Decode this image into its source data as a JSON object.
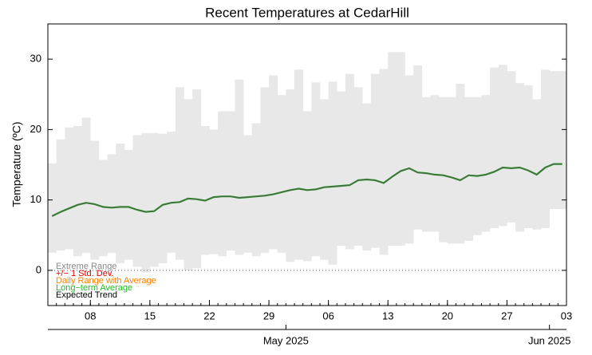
{
  "chart_data": {
    "type": "range-bar",
    "title": "Recent Temperatures at CedarHill",
    "ylabel": "Temperature (ºC)",
    "xlim": [
      "2025-04-03",
      "2025-06-03"
    ],
    "ylim": [
      -5,
      35
    ],
    "yticks": [
      0,
      10,
      20,
      30
    ],
    "xticks": [
      {
        "value": "2025-04-08",
        "label": "08"
      },
      {
        "value": "2025-04-15",
        "label": "15"
      },
      {
        "value": "2025-04-22",
        "label": "22"
      },
      {
        "value": "2025-04-29",
        "label": "29"
      },
      {
        "value": "2025-05-06",
        "label": "06"
      },
      {
        "value": "2025-05-13",
        "label": "13"
      },
      {
        "value": "2025-05-20",
        "label": "20"
      },
      {
        "value": "2025-05-27",
        "label": "27"
      },
      {
        "value": "2025-06-03",
        "label": "03"
      }
    ],
    "month_ticks": [
      {
        "value": "2025-05-01",
        "label": "May 2025"
      },
      {
        "value": "2025-06-01",
        "label": "Jun 2025"
      }
    ],
    "zero_line": true,
    "x": [
      "2025-04-03",
      "2025-04-04",
      "2025-04-05",
      "2025-04-06",
      "2025-04-07",
      "2025-04-08",
      "2025-04-09",
      "2025-04-10",
      "2025-04-11",
      "2025-04-12",
      "2025-04-13",
      "2025-04-14",
      "2025-04-15",
      "2025-04-16",
      "2025-04-17",
      "2025-04-18",
      "2025-04-19",
      "2025-04-20",
      "2025-04-21",
      "2025-04-22",
      "2025-04-23",
      "2025-04-24",
      "2025-04-25",
      "2025-04-26",
      "2025-04-27",
      "2025-04-28",
      "2025-04-29",
      "2025-04-30",
      "2025-05-01",
      "2025-05-02",
      "2025-05-03",
      "2025-05-04",
      "2025-05-05",
      "2025-05-06",
      "2025-05-07",
      "2025-05-08",
      "2025-05-09",
      "2025-05-10",
      "2025-05-11",
      "2025-05-12",
      "2025-05-13",
      "2025-05-14",
      "2025-05-15",
      "2025-05-16",
      "2025-05-17",
      "2025-05-18",
      "2025-05-19",
      "2025-05-20",
      "2025-05-21",
      "2025-05-22",
      "2025-05-23",
      "2025-05-24",
      "2025-05-25",
      "2025-05-26",
      "2025-05-27",
      "2025-05-28",
      "2025-05-29",
      "2025-05-30",
      "2025-05-31",
      "2025-06-01",
      "2025-06-02"
    ],
    "range": {
      "name": "Extreme Range",
      "color": "#e8e8e8",
      "low": [
        2.5,
        2.8,
        3.0,
        2.0,
        2.5,
        1.5,
        2.0,
        2.5,
        1.0,
        1.5,
        0.5,
        -0.3,
        0.5,
        1.0,
        2.5,
        1.5,
        0.0,
        0.3,
        2.2,
        2.3,
        2.0,
        2.8,
        2.2,
        2.5,
        2.0,
        2.5,
        3.0,
        2.5,
        1.2,
        1.5,
        1.3,
        2.0,
        1.5,
        0.8,
        3.5,
        3.0,
        3.5,
        2.8,
        3.2,
        2.2,
        3.5,
        3.5,
        3.8,
        5.8,
        5.5,
        5.5,
        4.0,
        3.8,
        3.8,
        4.2,
        5.0,
        5.5,
        6.0,
        6.3,
        6.8,
        5.5,
        6.0,
        5.8,
        6.0,
        8.7,
        8.7
      ],
      "high": [
        15.2,
        18.6,
        20.3,
        20.5,
        21.7,
        18.4,
        15.7,
        16.5,
        18,
        17.1,
        19.2,
        19.5,
        19.5,
        19.4,
        19.7,
        26,
        24.3,
        25.7,
        20.5,
        20,
        22.6,
        22.6,
        27.1,
        19.2,
        20.9,
        26,
        27.7,
        24.9,
        25.7,
        28.5,
        22.6,
        26.7,
        24.3,
        26.8,
        25.4,
        27.9,
        26,
        23.7,
        27.9,
        28.6,
        31,
        31,
        27.7,
        29.1,
        24.6,
        24.9,
        24.6,
        24.6,
        26.5,
        24.6,
        24.6,
        24.9,
        28.8,
        29.2,
        28.3,
        26.6,
        26.3,
        24.3,
        28.5,
        28.3,
        28.3
      ]
    },
    "trend": {
      "name": "Expected Trend",
      "color": "#4a6a45",
      "values": [
        7.7,
        8.3,
        8.8,
        9.3,
        9.6,
        9.4,
        9.0,
        8.9,
        9.0,
        9.0,
        8.6,
        8.3,
        8.4,
        9.3,
        9.6,
        9.7,
        10.2,
        10.1,
        9.9,
        10.4,
        10.5,
        10.5,
        10.3,
        10.4,
        10.5,
        10.6,
        10.8,
        11.1,
        11.4,
        11.6,
        11.4,
        11.5,
        11.8,
        11.9,
        12.0,
        12.1,
        12.8,
        12.9,
        12.8,
        12.4,
        13.3,
        14.1,
        14.5,
        13.9,
        13.8,
        13.6,
        13.5,
        13.2,
        12.8,
        13.5,
        13.4,
        13.6,
        14.0,
        14.6,
        14.5,
        14.6,
        14.2,
        13.6,
        14.6,
        15.1,
        15.1
      ]
    },
    "legend": [
      {
        "name": "Extreme Range",
        "color": "#888888"
      },
      {
        "name": "+/− 1 Std. Dev.",
        "color": "#e00000"
      },
      {
        "name": "Daily Range with Average",
        "color": "#ff8000"
      },
      {
        "name": "Long−term Average",
        "color": "#20c020"
      },
      {
        "name": "Expected Trend",
        "color": "#000000"
      }
    ]
  }
}
